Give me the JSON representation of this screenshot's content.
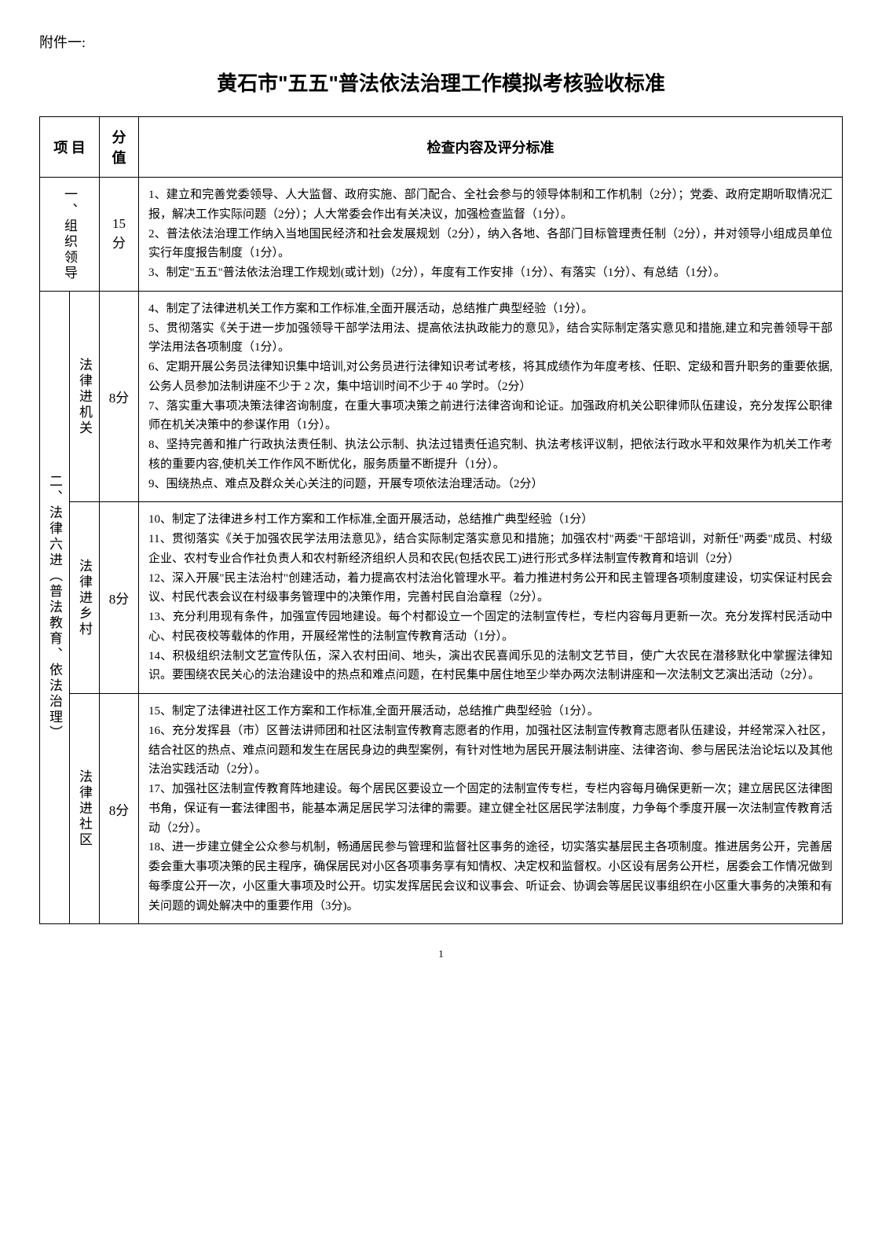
{
  "attachment_label": "附件一:",
  "title": "黄石市\"五五\"普法依法治理工作模拟考核验收标准",
  "headers": {
    "item": "项 目",
    "score": "分值",
    "criteria": "检查内容及评分标准"
  },
  "rows": [
    {
      "category": "一、组织领导",
      "subcategory": "",
      "score": "15分",
      "content": "1、建立和完善党委领导、人大监督、政府实施、部门配合、全社会参与的领导体制和工作机制（2分）；党委、政府定期听取情况汇报，解决工作实际问题（2分）；人大常委会作出有关决议，加强检查监督（1分）。\n2、普法依法治理工作纳入当地国民经济和社会发展规划（2分），纳入各地、各部门目标管理责任制（2分），并对领导小组成员单位实行年度报告制度（1分）。\n3、制定\"五五\"普法依法治理工作规划(或计划)（2分），年度有工作安排（1分）、有落实（1分）、有总结（1分）。"
    },
    {
      "category": "二、法律六进（普法教育、依法治理）",
      "subcategory": "法律进机关",
      "score": "8分",
      "content": "4、制定了法律进机关工作方案和工作标准,全面开展活动，总结推广典型经验（1分）。\n5、贯彻落实《关于进一步加强领导干部学法用法、提高依法执政能力的意见》，结合实际制定落实意见和措施,建立和完善领导干部学法用法各项制度（1分）。\n6、定期开展公务员法律知识集中培训,对公务员进行法律知识考试考核，将其成绩作为年度考核、任职、定级和晋升职务的重要依据,公务人员参加法制讲座不少于 2 次，集中培训时间不少于 40 学时。（2分）\n7、落实重大事项决策法律咨询制度，在重大事项决策之前进行法律咨询和论证。加强政府机关公职律师队伍建设，充分发挥公职律师在机关决策中的参谋作用（1分）。\n8、坚持完善和推广行政执法责任制、执法公示制、执法过错责任追究制、执法考核评议制，把依法行政水平和效果作为机关工作考核的重要内容,使机关工作作风不断优化，服务质量不断提升（1分）。\n9、围绕热点、难点及群众关心关注的问题，开展专项依法治理活动。（2分）"
    },
    {
      "category": "",
      "subcategory": "法律进乡村",
      "score": "8分",
      "content": "10、制定了法律进乡村工作方案和工作标准,全面开展活动，总结推广典型经验（1分）\n11、贯彻落实《关于加强农民学法用法意见》，结合实际制定落实意见和措施；加强农村\"两委\"干部培训，对新任\"两委\"成员、村级企业、农村专业合作社负责人和农村新经济组织人员和农民(包括农民工)进行形式多样法制宣传教育和培训（2分）\n12、深入开展\"民主法治村\"创建活动，着力提高农村法治化管理水平。着力推进村务公开和民主管理各项制度建设，切实保证村民会议、村民代表会议在村级事务管理中的决策作用，完善村民自治章程（2分）。\n13、充分利用现有条件，加强宣传园地建设。每个村都设立一个固定的法制宣传栏，专栏内容每月更新一次。充分发挥村民活动中心、村民夜校等载体的作用，开展经常性的法制宣传教育活动（1分）。\n14、积极组织法制文艺宣传队伍，深入农村田间、地头，演出农民喜闻乐见的法制文艺节目，使广大农民在潜移默化中掌握法律知识。要围绕农民关心的法治建设中的热点和难点问题，在村民集中居住地至少举办两次法制讲座和一次法制文艺演出活动（2分）。"
    },
    {
      "category": "",
      "subcategory": "法律进社区",
      "score": "8分",
      "content": "15、制定了法律进社区工作方案和工作标准,全面开展活动，总结推广典型经验（1分）。\n16、充分发挥县（市）区普法讲师团和社区法制宣传教育志愿者的作用，加强社区法制宣传教育志愿者队伍建设，并经常深入社区，结合社区的热点、难点问题和发生在居民身边的典型案例，有针对性地为居民开展法制讲座、法律咨询、参与居民法治论坛以及其他法治实践活动（2分）。\n17、加强社区法制宣传教育阵地建设。每个居民区要设立一个固定的法制宣传专栏，专栏内容每月确保更新一次；建立居民区法律图书角，保证有一套法律图书，能基本满足居民学习法律的需要。建立健全社区居民学法制度，力争每个季度开展一次法制宣传教育活动（2分）。\n18、进一步建立健全公众参与机制，畅通居民参与管理和监督社区事务的途径，切实落实基层民主各项制度。推进居务公开，完善居委会重大事项决策的民主程序，确保居民对小区各项事务享有知情权、决定权和监督权。小区设有居务公开栏，居委会工作情况做到每季度公开一次，小区重大事项及时公开。切实发挥居民会议和议事会、听证会、协调会等居民议事组织在小区重大事务的决策和有关问题的调处解决中的重要作用（3分)。"
    }
  ],
  "page_number": "1"
}
